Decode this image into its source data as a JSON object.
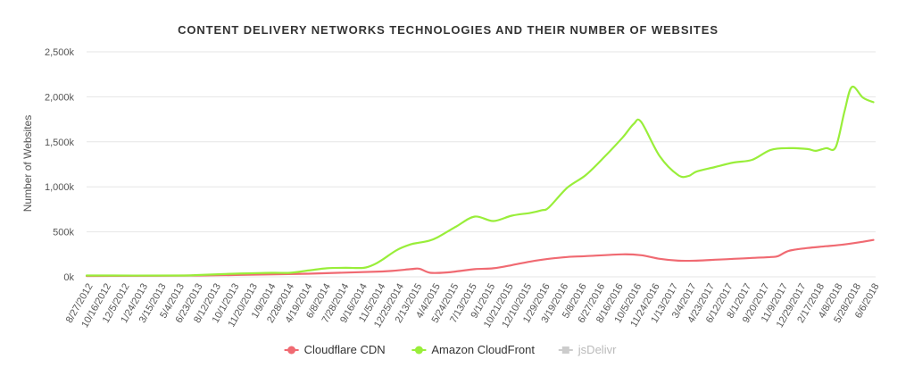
{
  "chart_data": {
    "type": "line",
    "title": "CONTENT DELIVERY NETWORKS TECHNOLOGIES AND THEIR NUMBER OF WEBSITES",
    "xlabel": "",
    "ylabel": "Number of Websites",
    "ylim": [
      0,
      2500000
    ],
    "y_ticks": [
      0,
      500000,
      1000000,
      1500000,
      2000000,
      2500000
    ],
    "y_tick_labels": [
      "0k",
      "500k",
      "1,000k",
      "1,500k",
      "2,000k",
      "2,500k"
    ],
    "x_range": [
      "8/27/2012",
      "7/1/2018"
    ],
    "x_tick_labels": [
      "8/27/2012",
      "10/16/2012",
      "12/5/2012",
      "1/24/2013",
      "3/15/2013",
      "5/4/2013",
      "6/23/2013",
      "8/12/2013",
      "10/1/2013",
      "11/20/2013",
      "1/9/2014",
      "2/28/2014",
      "4/19/2014",
      "6/8/2014",
      "7/28/2014",
      "9/16/2014",
      "11/5/2014",
      "12/25/2014",
      "2/13/2015",
      "4/4/2015",
      "5/24/2015",
      "7/13/2015",
      "9/1/2015",
      "10/21/2015",
      "12/10/2015",
      "1/29/2016",
      "3/19/2016",
      "5/8/2016",
      "6/27/2016",
      "8/16/2016",
      "10/5/2016",
      "11/24/2016",
      "1/13/2017",
      "3/4/2017",
      "4/23/2017",
      "6/12/2017",
      "8/1/2017",
      "9/20/2017",
      "11/9/2017",
      "12/29/2017",
      "2/17/2018",
      "4/8/2018",
      "5/28/2018",
      "6/6/2018"
    ],
    "grid": true,
    "legend_position": "bottom-center",
    "series": [
      {
        "name": "Cloudflare CDN",
        "color": "#f06a72",
        "x": [
          "8/27/2012",
          "6/23/2013",
          "4/19/2014",
          "11/5/2014",
          "1/20/2015",
          "2/13/2015",
          "3/15/2015",
          "5/1/2015",
          "7/13/2015",
          "9/1/2015",
          "10/21/2015",
          "12/10/2015",
          "1/29/2016",
          "3/19/2016",
          "5/8/2016",
          "8/16/2016",
          "10/5/2016",
          "11/24/2016",
          "1/13/2017",
          "3/4/2017",
          "4/23/2017",
          "6/12/2017",
          "8/1/2017",
          "9/20/2017",
          "10/10/2017",
          "11/9/2017",
          "12/29/2017",
          "2/17/2018",
          "4/8/2018",
          "5/28/2018",
          "6/25/2018"
        ],
        "values": [
          10000,
          15000,
          35000,
          60000,
          85000,
          90000,
          45000,
          50000,
          85000,
          95000,
          130000,
          170000,
          200000,
          220000,
          230000,
          250000,
          240000,
          200000,
          180000,
          180000,
          190000,
          200000,
          210000,
          220000,
          230000,
          290000,
          320000,
          340000,
          360000,
          390000,
          410000
        ]
      },
      {
        "name": "Amazon CloudFront",
        "color": "#99ee3a",
        "x": [
          "8/27/2012",
          "5/4/2013",
          "6/23/2013",
          "10/1/2013",
          "1/9/2014",
          "2/28/2014",
          "4/19/2014",
          "6/8/2014",
          "7/28/2014",
          "9/16/2014",
          "10/15/2014",
          "11/5/2014",
          "12/15/2014",
          "1/20/2015",
          "2/13/2015",
          "3/10/2015",
          "4/4/2015",
          "5/24/2015",
          "7/13/2015",
          "9/1/2015",
          "10/21/2015",
          "12/10/2015",
          "1/10/2016",
          "1/29/2016",
          "3/19/2016",
          "5/8/2016",
          "6/27/2016",
          "8/16/2016",
          "9/15/2016",
          "10/5/2016",
          "11/24/2016",
          "1/13/2017",
          "2/10/2017",
          "3/4/2017",
          "4/23/2017",
          "6/12/2017",
          "8/1/2017",
          "9/20/2017",
          "11/9/2017",
          "12/29/2017",
          "1/20/2018",
          "2/17/2018",
          "3/15/2018",
          "4/8/2018",
          "4/28/2018",
          "5/28/2018",
          "6/25/2018"
        ],
        "values": [
          15000,
          15000,
          20000,
          35000,
          45000,
          45000,
          70000,
          95000,
          100000,
          100000,
          140000,
          190000,
          300000,
          360000,
          380000,
          400000,
          440000,
          560000,
          670000,
          620000,
          680000,
          710000,
          740000,
          770000,
          990000,
          1130000,
          1330000,
          1550000,
          1700000,
          1720000,
          1340000,
          1130000,
          1120000,
          1170000,
          1220000,
          1270000,
          1300000,
          1410000,
          1430000,
          1420000,
          1400000,
          1430000,
          1440000,
          1840000,
          2110000,
          1990000,
          1940000
        ]
      },
      {
        "name": "jsDelivr",
        "color": "#bbbbbb",
        "hidden": true,
        "x": [],
        "values": []
      }
    ]
  }
}
